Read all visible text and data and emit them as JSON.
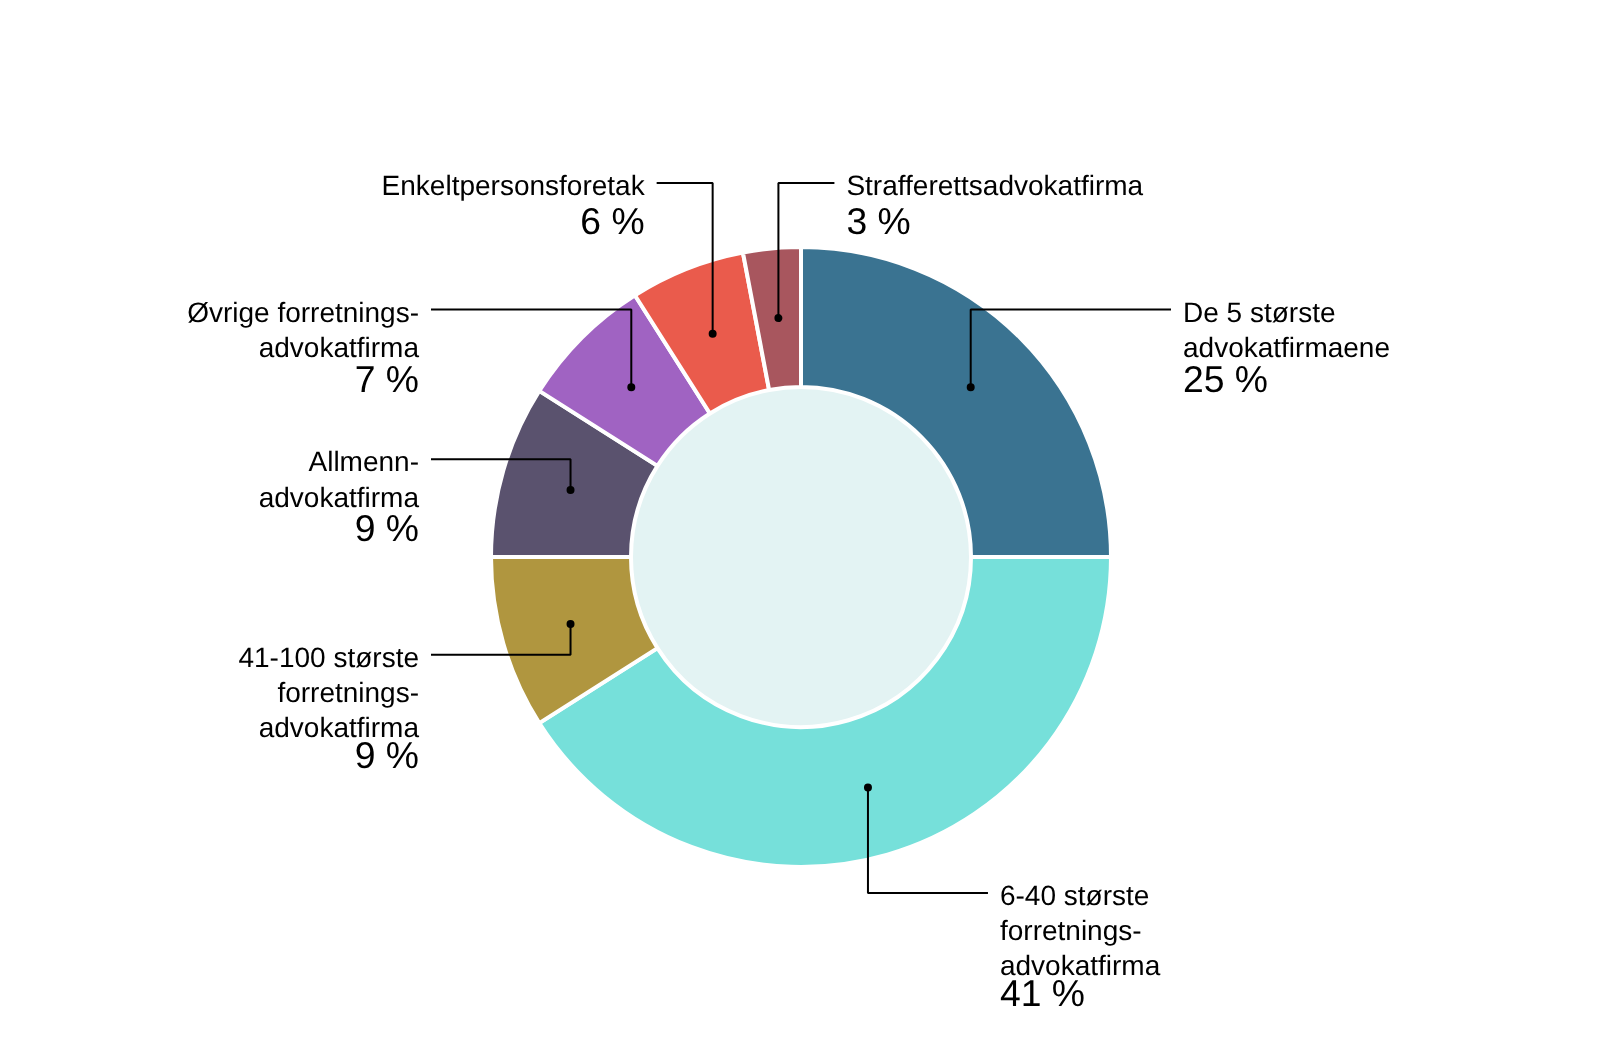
{
  "chart_data": {
    "type": "donut",
    "categories": [
      "De 5 største\nadvokatfirmaene",
      "6-40 største\nforretnings-\nadvokatfirma",
      "41-100 største\nforretnings-\nadvokatfirma",
      "Allmenn-\nadvokatfirma",
      "Øvrige forretnings-\nadvokatfirma",
      "Enkeltpersonsforetak",
      "Strafferettsadvokatfirma"
    ],
    "values": [
      25,
      41,
      9,
      9,
      7,
      6,
      3
    ],
    "value_labels": [
      "25 %",
      "41 %",
      "9 %",
      "9 %",
      "7 %",
      "6 %",
      "3 %"
    ],
    "colors": [
      "#3a7391",
      "#76e0da",
      "#b0963f",
      "#5a526e",
      "#a063c2",
      "#ea5b4c",
      "#a8565e"
    ]
  }
}
